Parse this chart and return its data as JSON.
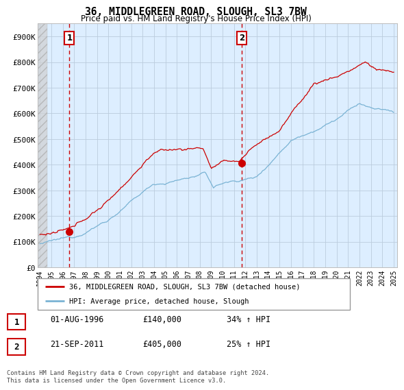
{
  "title": "36, MIDDLEGREEN ROAD, SLOUGH, SL3 7BW",
  "subtitle": "Price paid vs. HM Land Registry's House Price Index (HPI)",
  "ylim": [
    0,
    950000
  ],
  "yticks": [
    0,
    100000,
    200000,
    300000,
    400000,
    500000,
    600000,
    700000,
    800000,
    900000
  ],
  "ytick_labels": [
    "£0",
    "£100K",
    "£200K",
    "£300K",
    "£400K",
    "£500K",
    "£600K",
    "£700K",
    "£800K",
    "£900K"
  ],
  "sale1_date": "01-AUG-1996",
  "sale1_price": 140000,
  "sale1_hpi_pct": "34% ↑ HPI",
  "sale2_date": "21-SEP-2011",
  "sale2_price": 405000,
  "sale2_hpi_pct": "25% ↑ HPI",
  "legend_label1": "36, MIDDLEGREEN ROAD, SLOUGH, SL3 7BW (detached house)",
  "legend_label2": "HPI: Average price, detached house, Slough",
  "footer": "Contains HM Land Registry data © Crown copyright and database right 2024.\nThis data is licensed under the Open Government Licence v3.0.",
  "line_color_red": "#cc0000",
  "line_color_blue": "#7ab3d4",
  "plot_bg_color": "#ddeeff",
  "hatch_color": "#c8c8c8",
  "grid_color": "#bbccdd",
  "sale1_year": 1996.583,
  "sale2_year": 2011.708
}
